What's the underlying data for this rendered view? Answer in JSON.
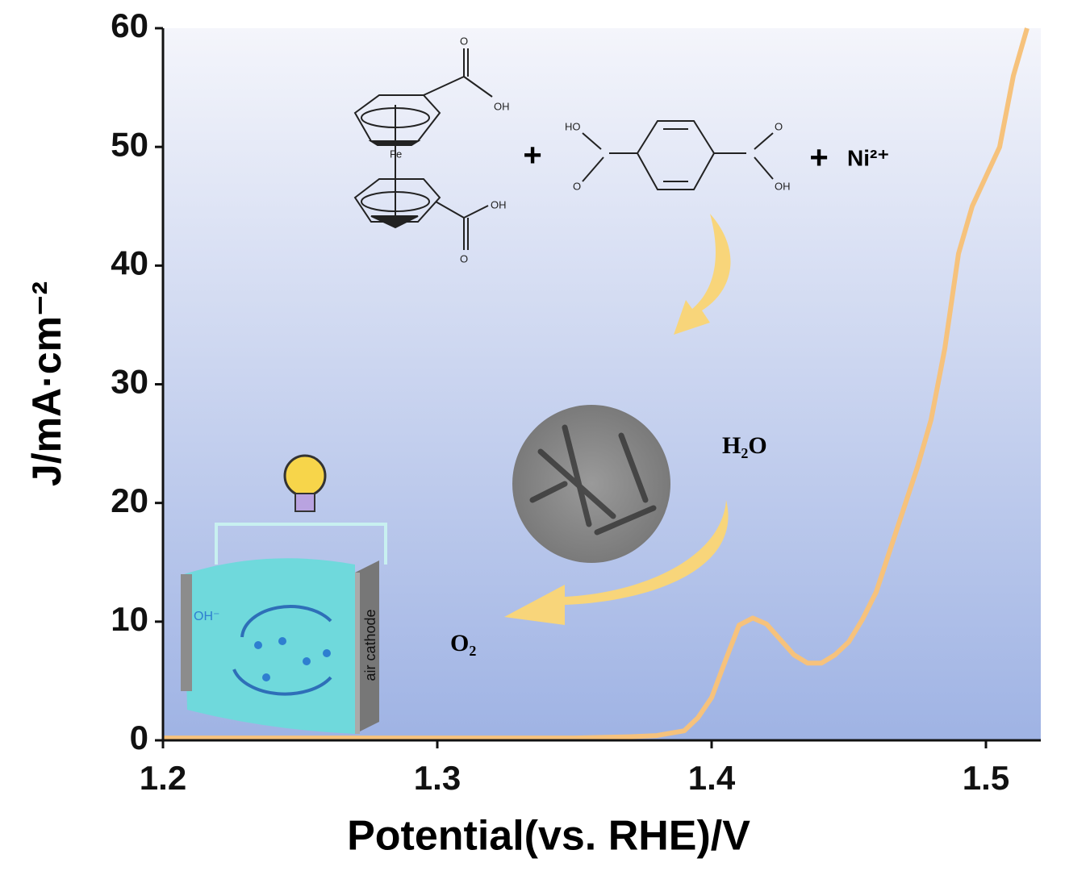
{
  "chart_data": {
    "type": "line",
    "x_label": "Potential(vs. RHE)/V",
    "y_label": "J/mA·cm⁻²",
    "x": [
      1.2,
      1.25,
      1.3,
      1.35,
      1.37,
      1.38,
      1.39,
      1.395,
      1.4,
      1.405,
      1.41,
      1.415,
      1.42,
      1.425,
      1.43,
      1.435,
      1.44,
      1.445,
      1.45,
      1.455,
      1.46,
      1.465,
      1.47,
      1.475,
      1.48,
      1.485,
      1.49,
      1.495,
      1.5,
      1.505,
      1.51,
      1.515
    ],
    "values": [
      0.2,
      0.2,
      0.2,
      0.2,
      0.3,
      0.4,
      0.8,
      1.9,
      3.6,
      6.7,
      9.7,
      10.3,
      9.8,
      8.5,
      7.2,
      6.5,
      6.5,
      7.2,
      8.3,
      10.2,
      12.5,
      16,
      19.5,
      23,
      27,
      33,
      41,
      45,
      47.5,
      50,
      56,
      60
    ],
    "color": "#f6c27c",
    "xlim": [
      1.2,
      1.52
    ],
    "ylim": [
      0,
      60
    ],
    "xticks": [
      1.2,
      1.3,
      1.4,
      1.5
    ],
    "yticks": [
      0,
      10,
      20,
      30,
      40,
      50,
      60
    ],
    "annotations": [
      "+",
      "+",
      "Ni²⁺",
      "H₂O",
      "O₂",
      "air cathode",
      "OH⁻"
    ],
    "structure_labels": [
      "Fe",
      "OH",
      "O",
      "OH",
      "O",
      "HO",
      "O",
      "O",
      "OH"
    ]
  }
}
